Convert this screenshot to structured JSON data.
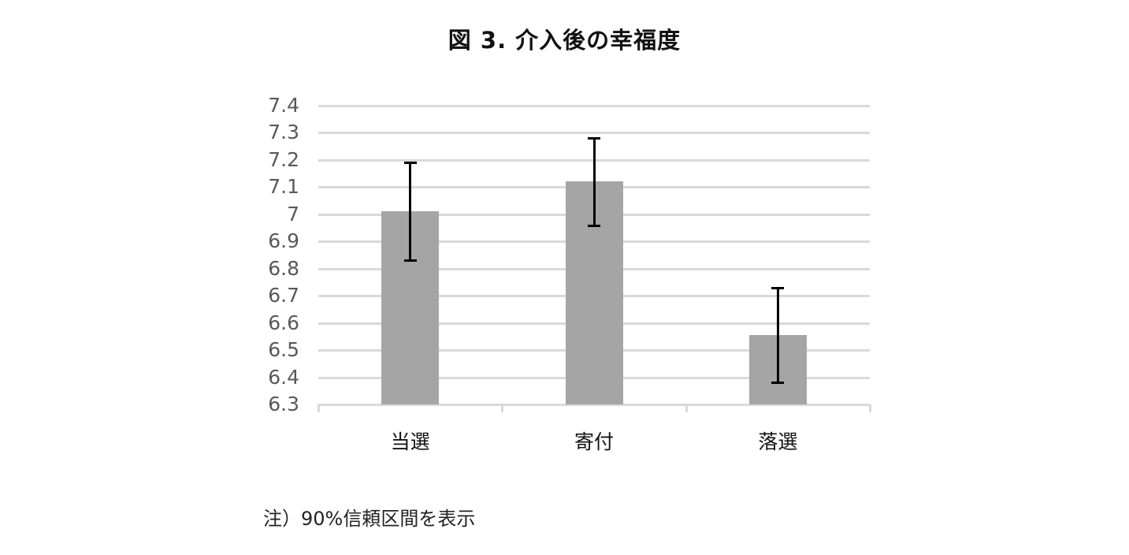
{
  "chart_data": {
    "type": "bar",
    "title": "図 3. 介入後の幸福度",
    "categories": [
      "当選",
      "寄付",
      "落選"
    ],
    "values": [
      7.01,
      7.12,
      6.555
    ],
    "error_bars": {
      "type": "90% confidence interval",
      "lower": [
        6.83,
        6.96,
        6.38
      ],
      "upper": [
        7.19,
        7.28,
        6.73
      ]
    },
    "xlabel": "",
    "ylabel": "",
    "ylim": [
      6.3,
      7.4
    ],
    "yticks": [
      "7.4",
      "7.3",
      "7.2",
      "7.1",
      "7",
      "6.9",
      "6.8",
      "6.7",
      "6.6",
      "6.5",
      "6.4",
      "6.3"
    ],
    "grid": true,
    "legend": null,
    "bar_color": "#a5a5a5",
    "error_color": "#000000",
    "annotation": "注）90%信頼区間を表示"
  }
}
